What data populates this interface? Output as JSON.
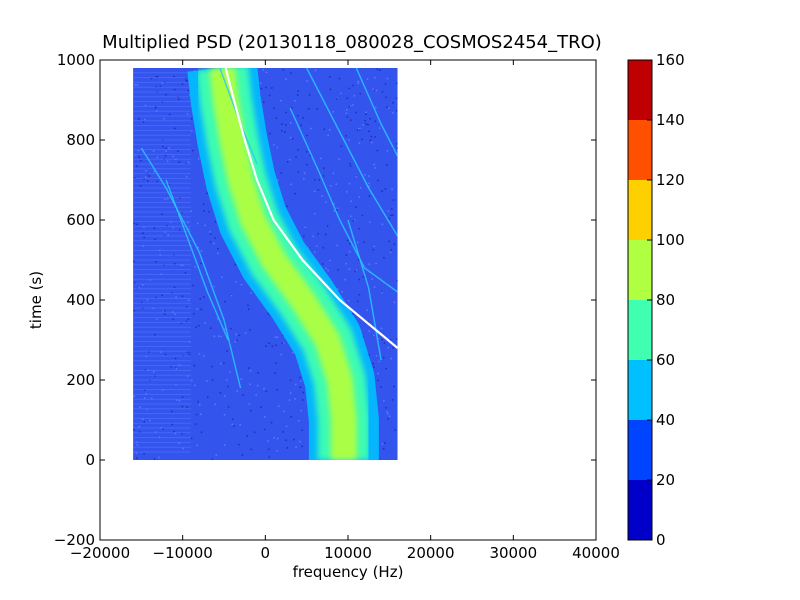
{
  "chart_data": {
    "type": "heatmap",
    "title": "Multiplied PSD (20130118_080028_COSMOS2454_TRO)",
    "xlabel": "frequency (Hz)",
    "ylabel": "time (s)",
    "xlim": [
      -20000,
      40000
    ],
    "ylim": [
      -200,
      1000
    ],
    "x_ticks": [
      -20000,
      -10000,
      0,
      10000,
      20000,
      30000,
      40000
    ],
    "x_tick_labels": [
      "−20000",
      "−10000",
      "0",
      "10000",
      "20000",
      "30000",
      "40000"
    ],
    "y_ticks": [
      -200,
      0,
      200,
      400,
      600,
      800,
      1000
    ],
    "y_tick_labels": [
      "−200",
      "0",
      "200",
      "400",
      "600",
      "800",
      "1000"
    ],
    "data_extent": {
      "x": [
        -16000,
        16000
      ],
      "y": [
        0,
        980
      ]
    },
    "main_trace": {
      "description_points": [
        {
          "t": 0,
          "f": 9500
        },
        {
          "t": 100,
          "f": 9500
        },
        {
          "t": 200,
          "f": 9000
        },
        {
          "t": 300,
          "f": 7500
        },
        {
          "t": 400,
          "f": 4500
        },
        {
          "t": 500,
          "f": 1000
        },
        {
          "t": 600,
          "f": -1500
        },
        {
          "t": 700,
          "f": -3000
        },
        {
          "t": 800,
          "f": -4000
        },
        {
          "t": 900,
          "f": -4800
        },
        {
          "t": 980,
          "f": -5200
        }
      ]
    },
    "white_line": [
      {
        "t": 280,
        "f": 16000
      },
      {
        "t": 400,
        "f": 9000
      },
      {
        "t": 500,
        "f": 4500
      },
      {
        "t": 600,
        "f": 1000
      },
      {
        "t": 700,
        "f": -1000
      },
      {
        "t": 800,
        "f": -2500
      },
      {
        "t": 900,
        "f": -3800
      },
      {
        "t": 980,
        "f": -4800
      }
    ],
    "colorbar": {
      "range": [
        0,
        160
      ],
      "bounds": [
        0,
        20,
        40,
        60,
        80,
        100,
        120,
        140,
        160
      ],
      "tick_labels": [
        "0",
        "20",
        "40",
        "60",
        "80",
        "100",
        "120",
        "140",
        "160"
      ],
      "colors": [
        "#0000c8",
        "#0044ff",
        "#00c0ff",
        "#40ffb0",
        "#b0ff40",
        "#ffd000",
        "#ff5000",
        "#c00000"
      ]
    },
    "background_color": "#3355ee"
  }
}
